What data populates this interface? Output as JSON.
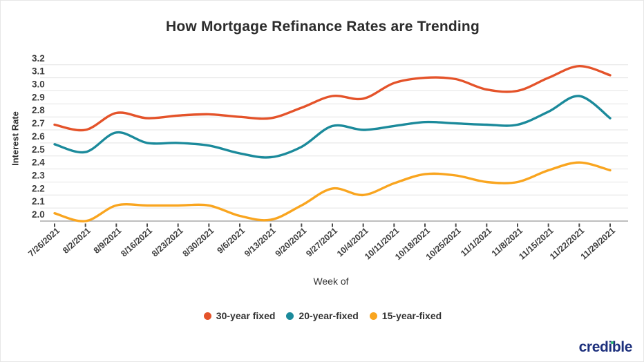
{
  "title": "How Mortgage Refinance Rates are Trending",
  "y_axis_title": "Interest Rate",
  "x_axis_title": "Week of",
  "logo_text": "credible",
  "colors": {
    "series_30yr": "#e4532a",
    "series_20yr": "#1b8a9b",
    "series_15yr": "#f9a51f",
    "gridline": "#e3e3e3",
    "baseline": "#a9a9a9",
    "tick": "#4a4a4a",
    "axis_text": "#3d3d3d",
    "title_text": "#2d2d2d",
    "logo_navy": "#1c2f7c",
    "logo_green": "#2fbe71"
  },
  "chart_data": {
    "type": "line",
    "title": "How Mortgage Refinance Rates are Trending",
    "xlabel": "Week of",
    "ylabel": "Interest Rate",
    "ylim": [
      2.0,
      3.2
    ],
    "yticks": [
      3.2,
      3.1,
      3.0,
      2.9,
      2.8,
      2.7,
      2.6,
      2.5,
      2.4,
      2.3,
      2.2,
      2.1,
      2.0
    ],
    "grid": true,
    "legend_position": "bottom",
    "x": [
      "7/26/2021",
      "8/2/2021",
      "8/9/2021",
      "8/16/2021",
      "8/23/2021",
      "8/30/2021",
      "9/6/2021",
      "9/13/2021",
      "9/20/2021",
      "9/27/2021",
      "10/4/2021",
      "10/11/2021",
      "10/18/2021",
      "10/25/2021",
      "11/1/2021",
      "11/8/2021",
      "11/15/2021",
      "11/22/2021",
      "11/29/2021"
    ],
    "series": [
      {
        "name": "30-year fixed",
        "color": "#e4532a",
        "values": [
          2.74,
          2.7,
          2.83,
          2.79,
          2.81,
          2.82,
          2.8,
          2.79,
          2.87,
          2.96,
          2.94,
          3.06,
          3.1,
          3.09,
          3.01,
          3.0,
          3.1,
          3.19,
          3.12
        ]
      },
      {
        "name": "20-year-fixed",
        "color": "#1b8a9b",
        "values": [
          2.59,
          2.53,
          2.68,
          2.6,
          2.6,
          2.58,
          2.52,
          2.49,
          2.57,
          2.73,
          2.7,
          2.73,
          2.76,
          2.75,
          2.74,
          2.74,
          2.84,
          2.96,
          2.79
        ]
      },
      {
        "name": "15-year-fixed",
        "color": "#f9a51f",
        "values": [
          2.06,
          2.0,
          2.12,
          2.12,
          2.12,
          2.12,
          2.04,
          2.01,
          2.12,
          2.25,
          2.2,
          2.29,
          2.36,
          2.35,
          2.3,
          2.3,
          2.39,
          2.45,
          2.39
        ]
      }
    ]
  }
}
